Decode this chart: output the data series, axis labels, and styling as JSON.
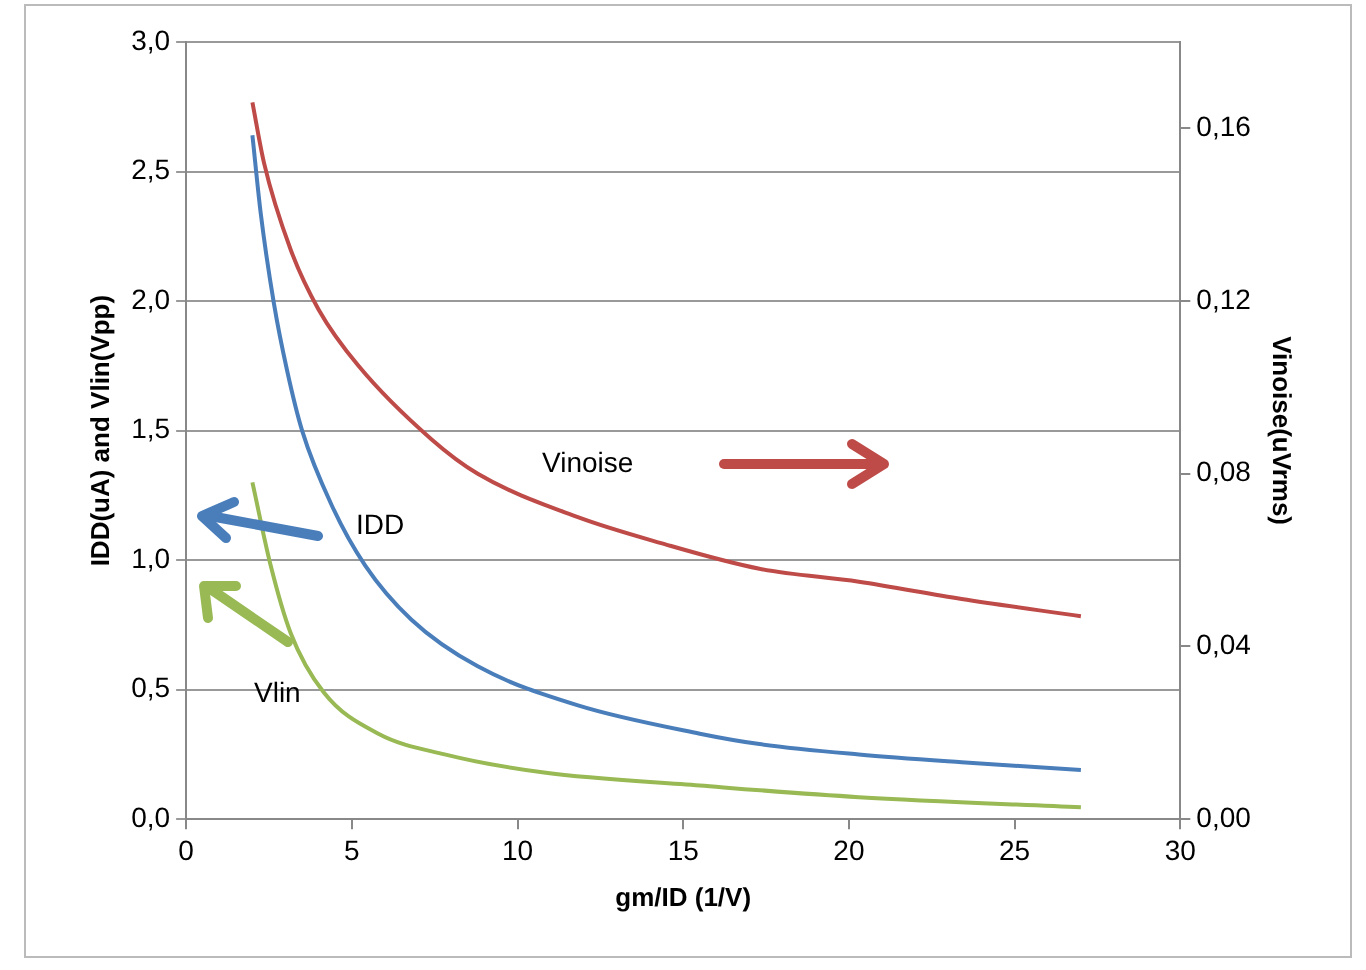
{
  "chart_data": {
    "type": "line",
    "xlabel": "gm/ID (1/V)",
    "ylabel": "IDD(uA) and Vlin(Vpp)",
    "y2label": "Vinoise(uVrms)",
    "xlim": [
      0,
      30
    ],
    "xticks": [
      0,
      5,
      10,
      15,
      20,
      25,
      30
    ],
    "ylim": [
      0,
      3
    ],
    "yticks": [
      {
        "value": 0,
        "label": "0,0"
      },
      {
        "value": 0.5,
        "label": "0,5"
      },
      {
        "value": 1,
        "label": "1,0"
      },
      {
        "value": 1.5,
        "label": "1,5"
      },
      {
        "value": 2,
        "label": "2,0"
      },
      {
        "value": 2.5,
        "label": "2,5"
      },
      {
        "value": 3,
        "label": "3,0"
      }
    ],
    "y2lim": [
      0,
      0.18
    ],
    "y2ticks": [
      {
        "value": 0,
        "label": "0,00"
      },
      {
        "value": 0.04,
        "label": "0,04"
      },
      {
        "value": 0.08,
        "label": "0,08"
      },
      {
        "value": 0.12,
        "label": "0,12"
      },
      {
        "value": 0.16,
        "label": "0,16"
      }
    ],
    "grid": "y",
    "marker": "none",
    "line_style": "solid",
    "series": [
      {
        "name": "IDD",
        "color": "#4a7ebb",
        "x": [
          2,
          2.25,
          2.65,
          3.05,
          3.5,
          4.4,
          5.4,
          6.8,
          8.8,
          11.8,
          15.5,
          17.3,
          20.3,
          23.4,
          27
        ],
        "values": [
          2.64,
          2.34,
          1.99,
          1.73,
          1.5,
          1.21,
          0.98,
          0.77,
          0.59,
          0.44,
          0.33,
          0.29,
          0.25,
          0.22,
          0.19
        ]
      },
      {
        "name": "Vlin",
        "color": "#98b954",
        "x": [
          2,
          2.55,
          3.15,
          4.15,
          5.8,
          7.8,
          10.8,
          15.5,
          20.3,
          27
        ],
        "values": [
          1.3,
          0.98,
          0.72,
          0.49,
          0.33,
          0.25,
          0.18,
          0.13,
          0.085,
          0.046
        ]
      },
      {
        "name": "Vinoise",
        "color": "#be4b48",
        "axis": "y2",
        "x": [
          2,
          2.35,
          3.15,
          4,
          5.2,
          7.4,
          8.8,
          11.8,
          14.3,
          17.3,
          20.3,
          23.4,
          27
        ],
        "values": [
          0.166,
          0.152,
          0.132,
          0.118,
          0.105,
          0.088,
          0.08,
          0.07,
          0.064,
          0.058,
          0.055,
          0.051,
          0.047
        ]
      }
    ]
  }
}
